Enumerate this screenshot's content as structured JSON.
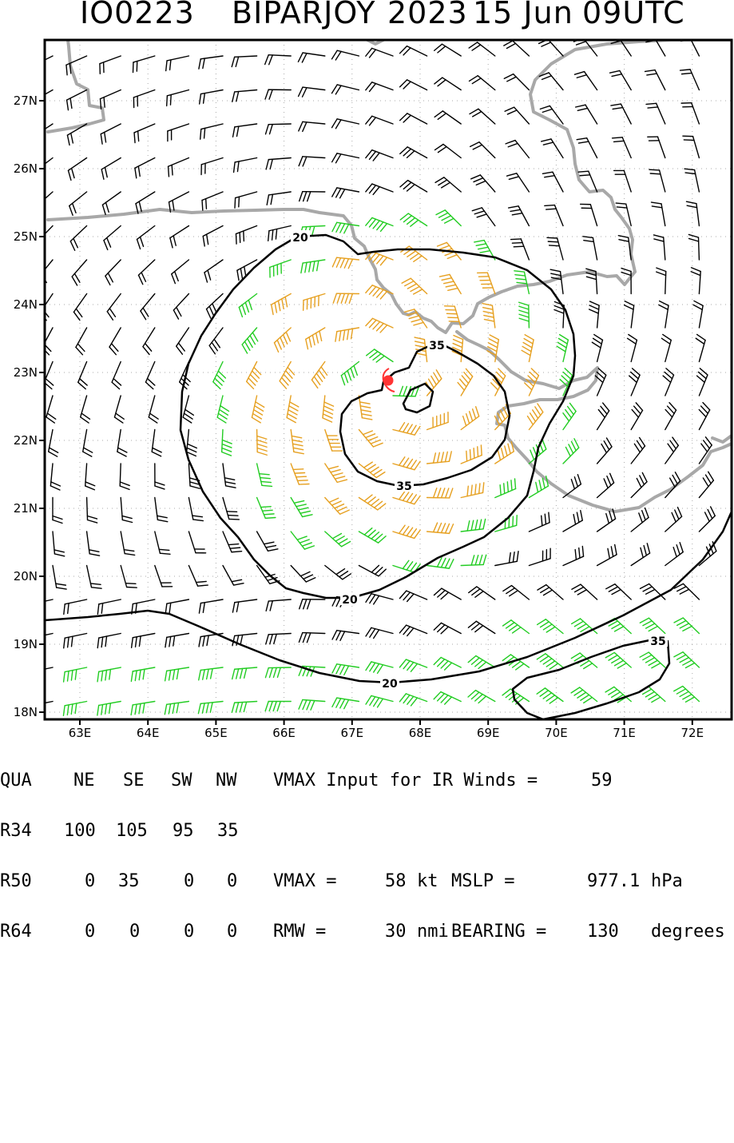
{
  "title": {
    "storm_id": "IO0223",
    "storm_name": "BIPARJOY",
    "year": "2023",
    "date": "15 Jun",
    "time": "09UTC"
  },
  "map": {
    "lat_labels": [
      "27N",
      "26N",
      "25N",
      "24N",
      "23N",
      "22N",
      "21N",
      "20N",
      "19N",
      "18N"
    ],
    "lon_labels": [
      "63E",
      "64E",
      "65E",
      "66E",
      "67E",
      "68E",
      "69E",
      "70E",
      "71E",
      "72E"
    ],
    "contour_labels": [
      "20",
      "20",
      "20",
      "35",
      "35",
      "35"
    ],
    "center_marker_color": "#ff3333",
    "coastline_color": "#a8a8a8",
    "barb_colors": {
      "calm": "#000000",
      "gale": "#22cc22",
      "storm": "#e6a020"
    }
  },
  "table": {
    "header": {
      "label": "QUA",
      "cols": [
        "NE",
        "SE",
        "SW",
        "NW"
      ]
    },
    "rows": [
      {
        "label": "R34",
        "values": [
          "100",
          "105",
          "95",
          "35"
        ]
      },
      {
        "label": "R50",
        "values": [
          "0",
          "35",
          "0",
          "0"
        ]
      },
      {
        "label": "R64",
        "values": [
          "0",
          "0",
          "0",
          "0"
        ]
      }
    ],
    "vmax_input_text": "VMAX Input for IR Winds =",
    "vmax_input_value": "59",
    "vmax_label": "VMAX =",
    "vmax_value": "58",
    "vmax_unit": "kt",
    "mslp_label": "MSLP =",
    "mslp_value": "977.1",
    "mslp_unit": "hPa",
    "rmw_label": "RMW =",
    "rmw_value": "30",
    "rmw_unit": "nmi",
    "bearing_label": "BEARING =",
    "bearing_value": "130",
    "bearing_unit": "degrees"
  }
}
